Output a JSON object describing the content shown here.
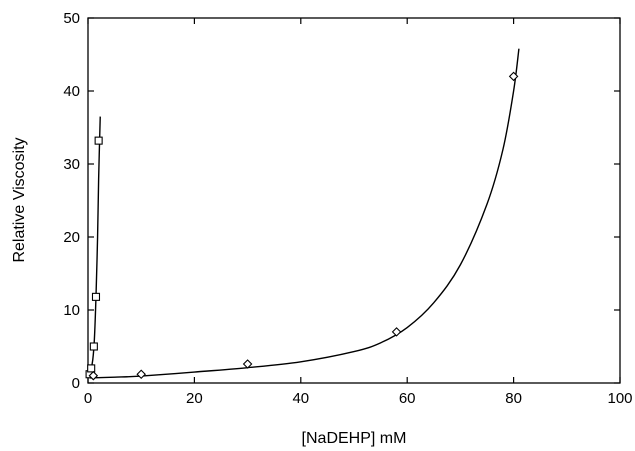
{
  "chart_data": {
    "type": "scatter",
    "title": "",
    "xlabel": "[NaDEHP] mM",
    "ylabel": "Relative Viscosity",
    "xlim": [
      0,
      100
    ],
    "ylim": [
      0,
      50
    ],
    "x_ticks": [
      0,
      20,
      40,
      60,
      80,
      100
    ],
    "y_ticks": [
      0,
      10,
      20,
      30,
      40,
      50
    ],
    "x_tick_labels": [
      "0",
      "20",
      "40",
      "60",
      "80",
      "100"
    ],
    "y_tick_labels": [
      "0",
      "10",
      "20",
      "30",
      "40",
      "50"
    ],
    "grid": false,
    "legend": "none",
    "series": [
      {
        "marker": "square",
        "points": [
          {
            "x": 0.3,
            "y": 1.2
          },
          {
            "x": 0.6,
            "y": 2.0
          },
          {
            "x": 1.1,
            "y": 5.0
          },
          {
            "x": 1.5,
            "y": 11.8
          },
          {
            "x": 2.0,
            "y": 33.2
          }
        ],
        "fit_curve": [
          [
            0.2,
            0.9
          ],
          [
            0.5,
            1.6
          ],
          [
            0.9,
            3.2
          ],
          [
            1.2,
            6.0
          ],
          [
            1.5,
            11.8
          ],
          [
            1.8,
            20.0
          ],
          [
            2.0,
            28.0
          ],
          [
            2.3,
            36.5
          ]
        ]
      },
      {
        "marker": "diamond",
        "points": [
          {
            "x": 1.0,
            "y": 1.0
          },
          {
            "x": 10.0,
            "y": 1.2
          },
          {
            "x": 30.0,
            "y": 2.6
          },
          {
            "x": 58.0,
            "y": 7.0
          },
          {
            "x": 80.0,
            "y": 42.0
          }
        ],
        "fit_curve": [
          [
            0.3,
            0.7
          ],
          [
            5,
            0.8
          ],
          [
            10,
            0.95
          ],
          [
            20,
            1.5
          ],
          [
            30,
            2.1
          ],
          [
            40,
            2.9
          ],
          [
            50,
            4.3
          ],
          [
            55,
            5.5
          ],
          [
            60,
            7.6
          ],
          [
            65,
            11.0
          ],
          [
            70,
            16.2
          ],
          [
            75,
            24.5
          ],
          [
            78,
            32.0
          ],
          [
            80,
            40.0
          ],
          [
            81,
            45.8
          ]
        ]
      }
    ]
  }
}
